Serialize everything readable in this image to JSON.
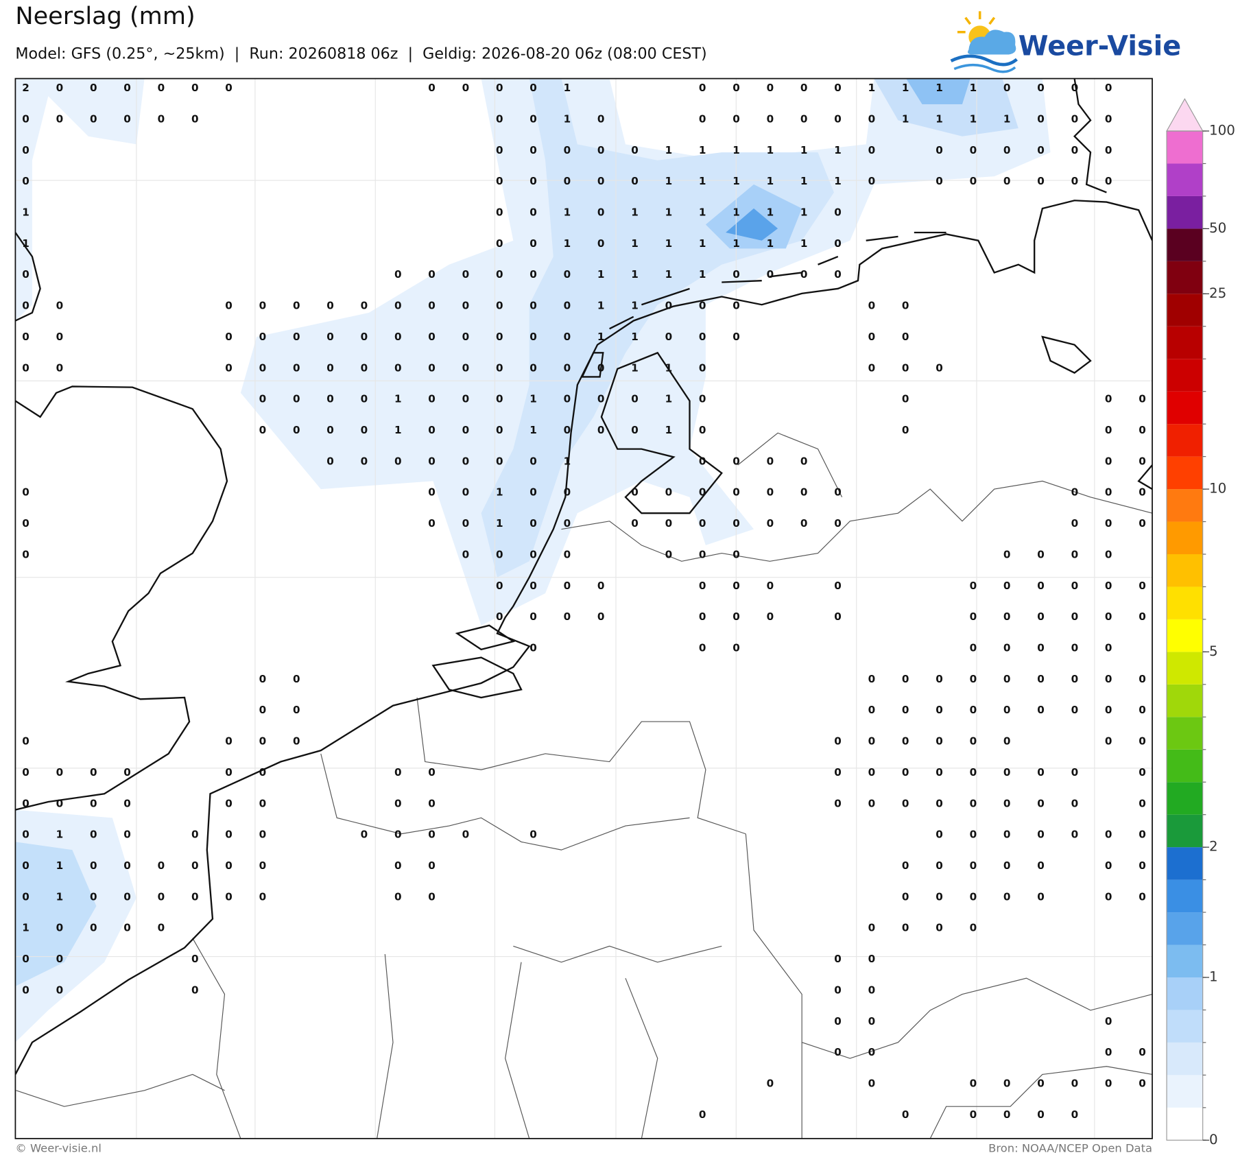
{
  "header": {
    "title": "Neerslag (mm)",
    "subtitle": "Model: GFS (0.25°, ~25km)  |  Run: 20260818 06z  |  Geldig: 2026-08-20 06z (08:00 CEST)"
  },
  "logo": {
    "text": "Weer-Visie"
  },
  "map": {
    "grid": [
      [
        2,
        0,
        0,
        0,
        0,
        0,
        0,
        null,
        null,
        null,
        null,
        null,
        0,
        0,
        0,
        0,
        1,
        null,
        null,
        null,
        0,
        0,
        0,
        0,
        0,
        1,
        1,
        1,
        1,
        0,
        0,
        0,
        0,
        null
      ],
      [
        0,
        0,
        0,
        0,
        0,
        0,
        null,
        null,
        null,
        null,
        null,
        null,
        null,
        null,
        0,
        0,
        1,
        0,
        null,
        null,
        0,
        0,
        0,
        0,
        0,
        0,
        1,
        1,
        1,
        1,
        0,
        0,
        0,
        null
      ],
      [
        0,
        null,
        null,
        null,
        null,
        null,
        null,
        null,
        null,
        null,
        null,
        null,
        null,
        null,
        0,
        0,
        0,
        0,
        0,
        1,
        1,
        1,
        1,
        1,
        1,
        0,
        null,
        0,
        0,
        0,
        0,
        0,
        0,
        null
      ],
      [
        0,
        null,
        null,
        null,
        null,
        null,
        null,
        null,
        null,
        null,
        null,
        null,
        null,
        null,
        0,
        0,
        0,
        0,
        0,
        1,
        1,
        1,
        1,
        1,
        1,
        0,
        null,
        0,
        0,
        0,
        0,
        0,
        0,
        null
      ],
      [
        1,
        null,
        null,
        null,
        null,
        null,
        null,
        null,
        null,
        null,
        null,
        null,
        null,
        null,
        0,
        0,
        1,
        0,
        1,
        1,
        1,
        1,
        1,
        1,
        0,
        null,
        null,
        null,
        null,
        null,
        null,
        null,
        null,
        null
      ],
      [
        1,
        null,
        null,
        null,
        null,
        null,
        null,
        null,
        null,
        null,
        null,
        null,
        null,
        null,
        0,
        0,
        1,
        0,
        1,
        1,
        1,
        1,
        1,
        1,
        0,
        null,
        null,
        null,
        null,
        null,
        null,
        null,
        null,
        null
      ],
      [
        0,
        null,
        null,
        null,
        null,
        null,
        null,
        null,
        null,
        null,
        null,
        0,
        0,
        0,
        0,
        0,
        0,
        1,
        1,
        1,
        1,
        0,
        0,
        0,
        0,
        null,
        null,
        null,
        null,
        null,
        null,
        null,
        null,
        null
      ],
      [
        0,
        0,
        null,
        null,
        null,
        null,
        0,
        0,
        0,
        0,
        0,
        0,
        0,
        0,
        0,
        0,
        0,
        1,
        1,
        0,
        0,
        0,
        null,
        null,
        null,
        0,
        0,
        null,
        null,
        null,
        null,
        null,
        null,
        null
      ],
      [
        0,
        0,
        null,
        null,
        null,
        null,
        0,
        0,
        0,
        0,
        0,
        0,
        0,
        0,
        0,
        0,
        0,
        1,
        1,
        0,
        0,
        0,
        null,
        null,
        null,
        0,
        0,
        null,
        null,
        null,
        null,
        null,
        null,
        null
      ],
      [
        0,
        0,
        null,
        null,
        null,
        null,
        0,
        0,
        0,
        0,
        0,
        0,
        0,
        0,
        0,
        0,
        0,
        0,
        1,
        1,
        0,
        null,
        null,
        null,
        null,
        0,
        0,
        0,
        null,
        null,
        null,
        null,
        null,
        null
      ],
      [
        null,
        null,
        null,
        null,
        null,
        null,
        null,
        0,
        0,
        0,
        0,
        1,
        0,
        0,
        0,
        1,
        0,
        0,
        0,
        1,
        0,
        null,
        null,
        null,
        null,
        null,
        0,
        null,
        null,
        null,
        null,
        null,
        0,
        0
      ],
      [
        null,
        null,
        null,
        null,
        null,
        null,
        null,
        0,
        0,
        0,
        0,
        1,
        0,
        0,
        0,
        1,
        0,
        0,
        0,
        1,
        0,
        null,
        null,
        null,
        null,
        null,
        0,
        null,
        null,
        null,
        null,
        null,
        0,
        0
      ],
      [
        null,
        null,
        null,
        null,
        null,
        null,
        null,
        null,
        null,
        0,
        0,
        0,
        0,
        0,
        0,
        0,
        1,
        null,
        null,
        null,
        0,
        0,
        0,
        0,
        null,
        null,
        null,
        null,
        null,
        null,
        null,
        null,
        0,
        0
      ],
      [
        0,
        null,
        null,
        null,
        null,
        null,
        null,
        null,
        null,
        null,
        null,
        null,
        0,
        0,
        1,
        0,
        0,
        null,
        0,
        0,
        0,
        0,
        0,
        0,
        0,
        null,
        null,
        null,
        null,
        null,
        null,
        0,
        0,
        0
      ],
      [
        0,
        null,
        null,
        null,
        null,
        null,
        null,
        null,
        null,
        null,
        null,
        null,
        0,
        0,
        1,
        0,
        0,
        null,
        0,
        0,
        0,
        0,
        0,
        0,
        0,
        null,
        null,
        null,
        null,
        null,
        null,
        0,
        0,
        0
      ],
      [
        0,
        null,
        null,
        null,
        null,
        null,
        null,
        null,
        null,
        null,
        null,
        null,
        null,
        0,
        0,
        0,
        0,
        null,
        null,
        0,
        0,
        0,
        null,
        null,
        null,
        null,
        null,
        null,
        null,
        0,
        0,
        0,
        0,
        null
      ],
      [
        null,
        null,
        null,
        null,
        null,
        null,
        null,
        null,
        null,
        null,
        null,
        null,
        null,
        null,
        0,
        0,
        0,
        0,
        null,
        null,
        0,
        0,
        0,
        null,
        0,
        null,
        null,
        null,
        0,
        0,
        0,
        0,
        0,
        0
      ],
      [
        null,
        null,
        null,
        null,
        null,
        null,
        null,
        null,
        null,
        null,
        null,
        null,
        null,
        null,
        0,
        0,
        0,
        0,
        null,
        null,
        0,
        0,
        0,
        null,
        0,
        null,
        null,
        null,
        0,
        0,
        0,
        0,
        0,
        0
      ],
      [
        null,
        null,
        null,
        null,
        null,
        null,
        null,
        null,
        null,
        null,
        null,
        null,
        null,
        null,
        null,
        0,
        null,
        null,
        null,
        null,
        0,
        0,
        null,
        null,
        null,
        null,
        null,
        null,
        0,
        0,
        0,
        0,
        0,
        null
      ],
      [
        null,
        null,
        null,
        null,
        null,
        null,
        null,
        0,
        0,
        null,
        null,
        null,
        null,
        null,
        null,
        null,
        null,
        null,
        null,
        null,
        null,
        null,
        null,
        null,
        null,
        0,
        0,
        0,
        0,
        0,
        0,
        0,
        0,
        0
      ],
      [
        null,
        null,
        null,
        null,
        null,
        null,
        null,
        0,
        0,
        null,
        null,
        null,
        null,
        null,
        null,
        null,
        null,
        null,
        null,
        null,
        null,
        null,
        null,
        null,
        null,
        0,
        0,
        0,
        0,
        0,
        0,
        0,
        0,
        0
      ],
      [
        0,
        null,
        null,
        null,
        null,
        null,
        0,
        0,
        0,
        null,
        null,
        null,
        null,
        null,
        null,
        null,
        null,
        null,
        null,
        null,
        null,
        null,
        null,
        null,
        0,
        0,
        0,
        0,
        0,
        0,
        null,
        null,
        0,
        0
      ],
      [
        0,
        0,
        0,
        0,
        null,
        null,
        0,
        0,
        null,
        null,
        null,
        0,
        0,
        null,
        null,
        null,
        null,
        null,
        null,
        null,
        null,
        null,
        null,
        null,
        0,
        0,
        0,
        0,
        0,
        0,
        0,
        0,
        null,
        0
      ],
      [
        0,
        0,
        0,
        0,
        null,
        null,
        0,
        0,
        null,
        null,
        null,
        0,
        0,
        null,
        null,
        null,
        null,
        null,
        null,
        null,
        null,
        null,
        null,
        null,
        0,
        0,
        0,
        0,
        0,
        0,
        0,
        0,
        null,
        0
      ],
      [
        0,
        1,
        0,
        0,
        null,
        0,
        0,
        0,
        null,
        null,
        0,
        0,
        0,
        0,
        null,
        0,
        null,
        null,
        null,
        null,
        null,
        null,
        null,
        null,
        null,
        null,
        null,
        0,
        0,
        0,
        0,
        0,
        0,
        0
      ],
      [
        0,
        1,
        0,
        0,
        0,
        0,
        0,
        0,
        null,
        null,
        null,
        0,
        0,
        null,
        null,
        null,
        null,
        null,
        null,
        null,
        null,
        null,
        null,
        null,
        null,
        null,
        0,
        0,
        0,
        0,
        0,
        null,
        0,
        0
      ],
      [
        0,
        1,
        0,
        0,
        0,
        0,
        0,
        0,
        null,
        null,
        null,
        0,
        0,
        null,
        null,
        null,
        null,
        null,
        null,
        null,
        null,
        null,
        null,
        null,
        null,
        null,
        0,
        0,
        0,
        0,
        0,
        null,
        0,
        0
      ],
      [
        1,
        0,
        0,
        0,
        0,
        null,
        null,
        null,
        null,
        null,
        null,
        null,
        null,
        null,
        null,
        null,
        null,
        null,
        null,
        null,
        null,
        null,
        null,
        null,
        null,
        0,
        0,
        0,
        0,
        null,
        null,
        null,
        null,
        null
      ],
      [
        0,
        0,
        null,
        null,
        null,
        0,
        null,
        null,
        null,
        null,
        null,
        null,
        null,
        null,
        null,
        null,
        null,
        null,
        null,
        null,
        null,
        null,
        null,
        null,
        0,
        0,
        null,
        null,
        null,
        null,
        null,
        null,
        null,
        null
      ],
      [
        0,
        0,
        null,
        null,
        null,
        0,
        null,
        null,
        null,
        null,
        null,
        null,
        null,
        null,
        null,
        null,
        null,
        null,
        null,
        null,
        null,
        null,
        null,
        null,
        0,
        0,
        null,
        null,
        null,
        null,
        null,
        null,
        null,
        null
      ],
      [
        null,
        null,
        null,
        null,
        null,
        null,
        null,
        null,
        null,
        null,
        null,
        null,
        null,
        null,
        null,
        null,
        null,
        null,
        null,
        null,
        null,
        null,
        null,
        null,
        0,
        0,
        null,
        null,
        null,
        null,
        null,
        null,
        0,
        null
      ],
      [
        null,
        null,
        null,
        null,
        null,
        null,
        null,
        null,
        null,
        null,
        null,
        null,
        null,
        null,
        null,
        null,
        null,
        null,
        null,
        null,
        null,
        null,
        null,
        null,
        0,
        0,
        null,
        null,
        null,
        null,
        null,
        null,
        0,
        0
      ],
      [
        null,
        null,
        null,
        null,
        null,
        null,
        null,
        null,
        null,
        null,
        null,
        null,
        null,
        null,
        null,
        null,
        null,
        null,
        null,
        null,
        null,
        null,
        0,
        null,
        null,
        0,
        null,
        null,
        0,
        0,
        0,
        0,
        0,
        0
      ],
      [
        null,
        null,
        null,
        null,
        null,
        null,
        null,
        null,
        null,
        null,
        null,
        null,
        null,
        null,
        null,
        null,
        null,
        null,
        null,
        null,
        0,
        null,
        null,
        null,
        null,
        null,
        0,
        null,
        0,
        0,
        0,
        0,
        null,
        null
      ]
    ]
  },
  "colorbar": {
    "levels": [
      0,
      0.2,
      0.4,
      0.6,
      0.8,
      1,
      1.25,
      1.5,
      1.75,
      2,
      2.5,
      3,
      3.5,
      4,
      4.5,
      5,
      6,
      7,
      8,
      9,
      10,
      12.5,
      15,
      17.5,
      20,
      22.5,
      25,
      35,
      50,
      65,
      80,
      100
    ],
    "colors": [
      "#ffffff",
      "#eaf3fd",
      "#d8e9fb",
      "#c0ddfa",
      "#a8d0f8",
      "#7cbcf0",
      "#58a3ea",
      "#3a8fe4",
      "#1c6fd0",
      "#1a9a3a",
      "#22aa22",
      "#44bb18",
      "#6cc812",
      "#a0d80a",
      "#cfe800",
      "#ffff00",
      "#ffe000",
      "#ffc000",
      "#ff9a00",
      "#ff7a10",
      "#ff4000",
      "#f02000",
      "#e00000",
      "#cc0000",
      "#b80000",
      "#a00000",
      "#800010",
      "#5a0020",
      "#7a1fa0",
      "#b040c8",
      "#ee6ed0"
    ],
    "extend_color": "#fcd8f0",
    "ticks": [
      0,
      1,
      2,
      5,
      10,
      25,
      50,
      100
    ]
  },
  "footer": {
    "left": "© Weer-visie.nl",
    "right": "Bron: NOAA/NCEP Open Data"
  }
}
